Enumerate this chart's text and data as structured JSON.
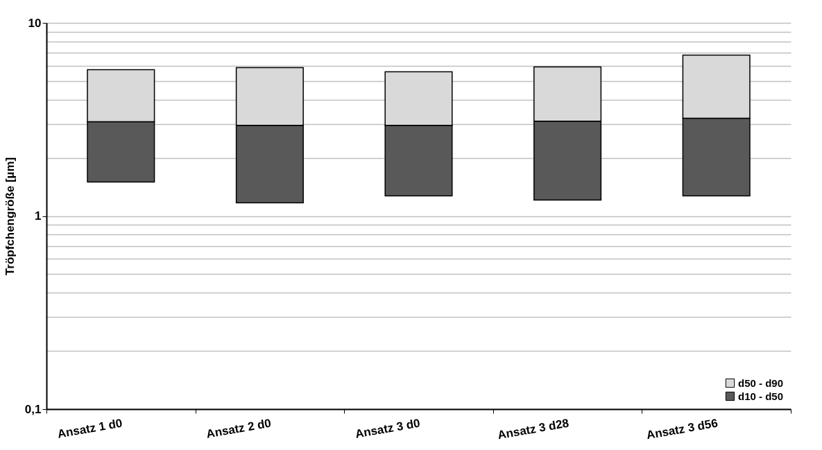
{
  "chart_data": {
    "type": "bar",
    "ylabel": "Tröpfchengröße [µm]",
    "categories": [
      "Ansatz 1 d0",
      "Ansatz 2 d0",
      "Ansatz 3 d0",
      "Ansatz 3 d28",
      "Ansatz 3 d56"
    ],
    "series": [
      {
        "name": "d10 - d50",
        "color": "#595959",
        "base": [
          1.5,
          1.17,
          1.27,
          1.21,
          1.27
        ],
        "values": [
          1.58,
          1.78,
          1.68,
          1.89,
          1.94
        ]
      },
      {
        "name": "d50 - d90",
        "color": "#d9d9d9",
        "base": [
          3.08,
          2.95,
          2.95,
          3.1,
          3.21
        ],
        "values": [
          2.64,
          2.92,
          2.63,
          2.82,
          3.6
        ]
      }
    ],
    "log": true,
    "ylim": [
      0.1,
      10
    ],
    "yticks": [
      {
        "value": 0.1,
        "label": "0,1"
      },
      {
        "value": 0.2,
        "label": null
      },
      {
        "value": 0.3,
        "label": null
      },
      {
        "value": 0.4,
        "label": null
      },
      {
        "value": 0.5,
        "label": null
      },
      {
        "value": 0.6,
        "label": null
      },
      {
        "value": 0.7,
        "label": null
      },
      {
        "value": 0.8,
        "label": null
      },
      {
        "value": 0.9,
        "label": null
      },
      1,
      {
        "value": 2,
        "label": null
      },
      {
        "value": 3,
        "label": null
      },
      {
        "value": 4,
        "label": null
      },
      {
        "value": 5,
        "label": null
      },
      {
        "value": 6,
        "label": null
      },
      {
        "value": 7,
        "label": null
      },
      {
        "value": 8,
        "label": null
      },
      {
        "value": 9,
        "label": null
      },
      10
    ],
    "grid": "y",
    "legend": "bottom right"
  }
}
